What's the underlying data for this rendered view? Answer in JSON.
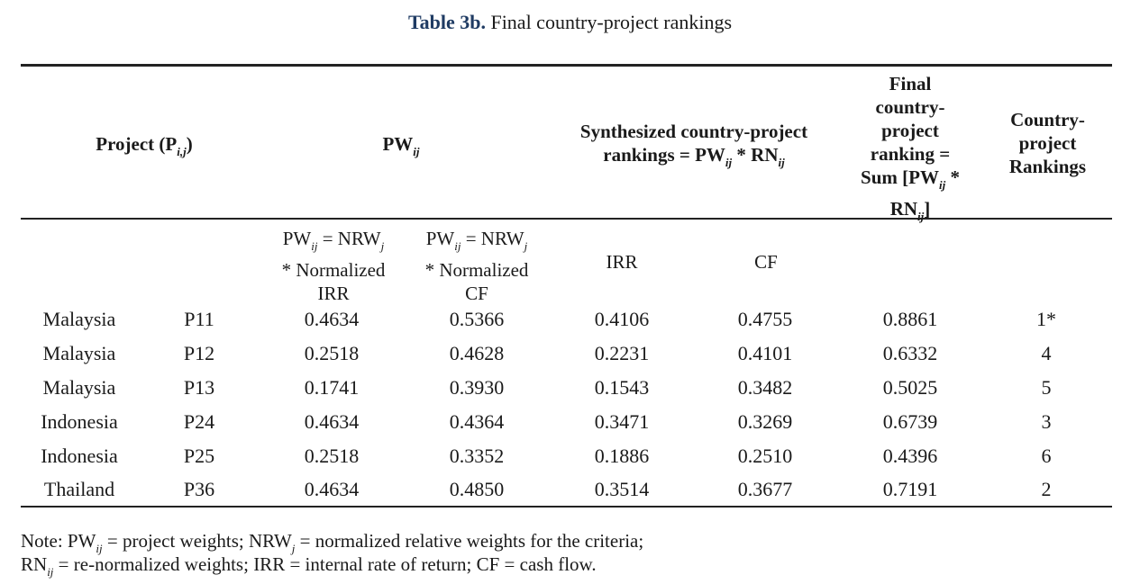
{
  "caption": {
    "lead": "Table 3b.",
    "text": " Final country-project rankings"
  },
  "header": {
    "project": "Project (P",
    "project_sub": "i,j",
    "project_close": ")",
    "pw": "PW",
    "pw_sub": "ij",
    "synth_l1": "Synthesized country-project",
    "synth_l2a": "rankings = PW",
    "synth_l2_sub1": "ij",
    "synth_l2b": " * RN",
    "synth_l2_sub2": "ij",
    "final_l1": "Final",
    "final_l2": "country-",
    "final_l3": "project",
    "final_l4": "ranking =",
    "final_l5a": "Sum [PW",
    "final_l5_sub": "ij",
    "final_l5b": " *",
    "final_l6a": "RN",
    "final_l6_sub": "ij",
    "final_l6b": "]",
    "rank_l1": "Country-",
    "rank_l2": "project",
    "rank_l3": "Rankings"
  },
  "subheader": {
    "irr_l1a": "PW",
    "irr_l1_sub1": "ij",
    "irr_l1b": " = NRW",
    "irr_l1_sub2": "j",
    "irr_l2": "* Normalized",
    "irr_l3": "IRR",
    "cf_l1a": "PW",
    "cf_l1_sub1": "ij",
    "cf_l1b": " = NRW",
    "cf_l1_sub2": "j",
    "cf_l2": "* Normalized",
    "cf_l3": "CF",
    "irr": "IRR",
    "cf": "CF"
  },
  "rows": [
    {
      "country": "Malaysia",
      "project": "P11",
      "pw_irr": "0.4634",
      "pw_cf": "0.5366",
      "s_irr": "0.4106",
      "s_cf": "0.4755",
      "final": "0.8861",
      "rank": "1*"
    },
    {
      "country": "Malaysia",
      "project": "P12",
      "pw_irr": "0.2518",
      "pw_cf": "0.4628",
      "s_irr": "0.2231",
      "s_cf": "0.4101",
      "final": "0.6332",
      "rank": "4"
    },
    {
      "country": "Malaysia",
      "project": "P13",
      "pw_irr": "0.1741",
      "pw_cf": "0.3930",
      "s_irr": "0.1543",
      "s_cf": "0.3482",
      "final": "0.5025",
      "rank": "5"
    },
    {
      "country": "Indonesia",
      "project": "P24",
      "pw_irr": "0.4634",
      "pw_cf": "0.4364",
      "s_irr": "0.3471",
      "s_cf": "0.3269",
      "final": "0.6739",
      "rank": "3"
    },
    {
      "country": "Indonesia",
      "project": "P25",
      "pw_irr": "0.2518",
      "pw_cf": "0.3352",
      "s_irr": "0.1886",
      "s_cf": "0.2510",
      "final": "0.4396",
      "rank": "6"
    },
    {
      "country": "Thailand",
      "project": "P36",
      "pw_irr": "0.4634",
      "pw_cf": "0.4850",
      "s_irr": "0.3514",
      "s_cf": "0.3677",
      "final": "0.7191",
      "rank": "2"
    }
  ],
  "note": {
    "l1a": "Note: PW",
    "l1_sub1": "ij",
    "l1b": " = project weights; NRW",
    "l1_sub2": "j",
    "l1c": " = normalized relative weights for the criteria;",
    "l2a": "RN",
    "l2_sub": "ij",
    "l2b": " = re-normalized weights; IRR = internal rate of return; CF = cash flow."
  }
}
